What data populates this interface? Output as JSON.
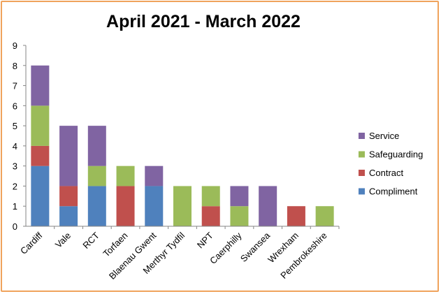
{
  "chart_data": {
    "type": "bar",
    "stacked": true,
    "title": "April 2021 - March 2022",
    "xlabel": "",
    "ylabel": "",
    "ylim": [
      0,
      9
    ],
    "yticks": [
      0,
      1,
      2,
      3,
      4,
      5,
      6,
      7,
      8,
      9
    ],
    "grid": false,
    "legend_position": "right",
    "categories": [
      "Cardiff",
      "Vale",
      "RCT",
      "Torfaen",
      "Blaenau Gwent",
      "Merthyr Tydfil",
      "NPT",
      "Caerphilly",
      "Swansea",
      "Wrexham",
      "Pembrokeshire"
    ],
    "series": [
      {
        "name": "Compliment",
        "color": "#4f81bd",
        "values": [
          3,
          1,
          2,
          0,
          2,
          0,
          0,
          0,
          0,
          0,
          0
        ]
      },
      {
        "name": "Contract",
        "color": "#c0504d",
        "values": [
          1,
          1,
          0,
          2,
          0,
          0,
          1,
          0,
          0,
          1,
          0
        ]
      },
      {
        "name": "Safeguarding",
        "color": "#9bbb59",
        "values": [
          2,
          0,
          1,
          1,
          0,
          2,
          1,
          1,
          0,
          0,
          1
        ]
      },
      {
        "name": "Service",
        "color": "#8064a2",
        "values": [
          2,
          3,
          2,
          0,
          1,
          0,
          0,
          1,
          2,
          0,
          0
        ]
      }
    ]
  }
}
